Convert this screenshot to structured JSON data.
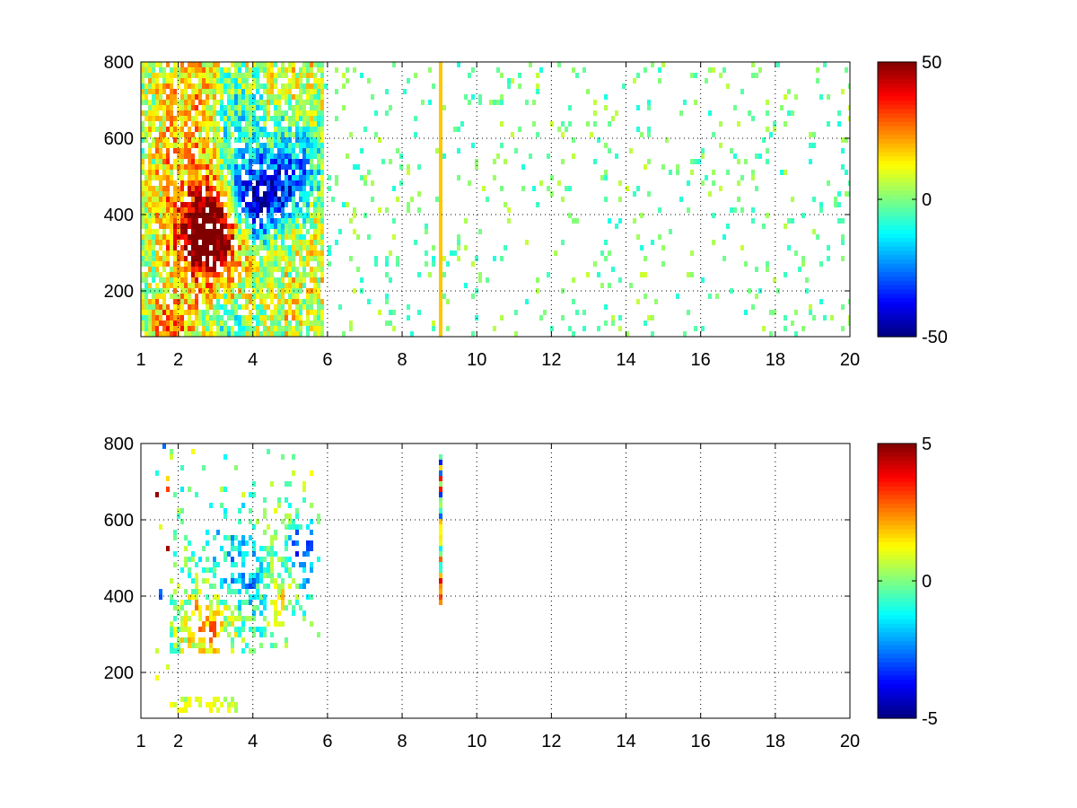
{
  "chart_data": [
    {
      "type": "heatmap",
      "title": "",
      "xlabel": "",
      "ylabel": "",
      "xlim": [
        1,
        20
      ],
      "ylim": [
        80,
        800
      ],
      "x_ticks": [
        "1",
        "2",
        "4",
        "6",
        "8",
        "10",
        "12",
        "14",
        "16",
        "18",
        "20"
      ],
      "y_ticks": [
        "200",
        "400",
        "600",
        "800"
      ],
      "grid": true,
      "colormap": "jet",
      "colorbar": {
        "min": -50,
        "max": 50,
        "ticks": [
          "50",
          "0",
          "-50"
        ]
      },
      "features": [
        {
          "x": 2.7,
          "y": 340,
          "value": 38,
          "sx": 0.55,
          "sy": 70
        },
        {
          "x": 3.2,
          "y": 380,
          "value": 28,
          "sx": 0.5,
          "sy": 80
        },
        {
          "x": 3.9,
          "y": 420,
          "value": -42,
          "sx": 0.45,
          "sy": 70
        },
        {
          "x": 4.6,
          "y": 470,
          "value": -32,
          "sx": 0.5,
          "sy": 70
        },
        {
          "x": 5.3,
          "y": 530,
          "value": -22,
          "sx": 0.45,
          "sy": 80
        },
        {
          "x": 3.6,
          "y": 620,
          "value": -18,
          "sx": 0.6,
          "sy": 120
        },
        {
          "x": 2.3,
          "y": 560,
          "value": 14,
          "sx": 0.6,
          "sy": 230
        },
        {
          "x": 1.9,
          "y": 120,
          "value": 22,
          "sx": 0.35,
          "sy": 40
        },
        {
          "x": 3.2,
          "y": 120,
          "value": -14,
          "sx": 0.5,
          "sy": 40
        }
      ],
      "dense_region": {
        "x_max": 5.9,
        "coverage": 0.85
      },
      "sparse_coverage": 0.07,
      "sparse_value_range": [
        -10,
        8
      ],
      "stripe": {
        "x": 9.05,
        "y_min": 80,
        "y_max": 800,
        "value": 18
      }
    },
    {
      "type": "heatmap",
      "title": "",
      "xlabel": "",
      "ylabel": "",
      "xlim": [
        1,
        20
      ],
      "ylim": [
        80,
        800
      ],
      "x_ticks": [
        "1",
        "2",
        "4",
        "6",
        "8",
        "10",
        "12",
        "14",
        "16",
        "18",
        "20"
      ],
      "y_ticks": [
        "200",
        "400",
        "600",
        "800"
      ],
      "grid": true,
      "colormap": "jet",
      "colorbar": {
        "min": -5,
        "max": 5,
        "ticks": [
          "5",
          "0",
          "-5"
        ]
      },
      "features": [
        {
          "x": 2.8,
          "y": 330,
          "value": 2.5,
          "sx": 0.5,
          "sy": 60
        },
        {
          "x": 3.8,
          "y": 440,
          "value": -2.0,
          "sx": 0.5,
          "sy": 80
        },
        {
          "x": 4.8,
          "y": 420,
          "value": 1.8,
          "sx": 0.35,
          "sy": 50
        },
        {
          "x": 5.3,
          "y": 500,
          "value": -3.0,
          "sx": 0.35,
          "sy": 70
        },
        {
          "x": 3.0,
          "y": 560,
          "value": -1.0,
          "sx": 0.6,
          "sy": 120
        }
      ],
      "dense_region": {
        "x_min": 1.8,
        "x_max": 5.8,
        "y_min": 250,
        "y_max": 790,
        "coverage": 0.55
      },
      "low_band": {
        "x_min": 1.8,
        "x_max": 3.6,
        "y_min": 90,
        "y_max": 130,
        "value": 0.8
      },
      "stripe": {
        "x": 9.05,
        "y_min": 370,
        "y_max": 770,
        "value": 0
      }
    }
  ]
}
